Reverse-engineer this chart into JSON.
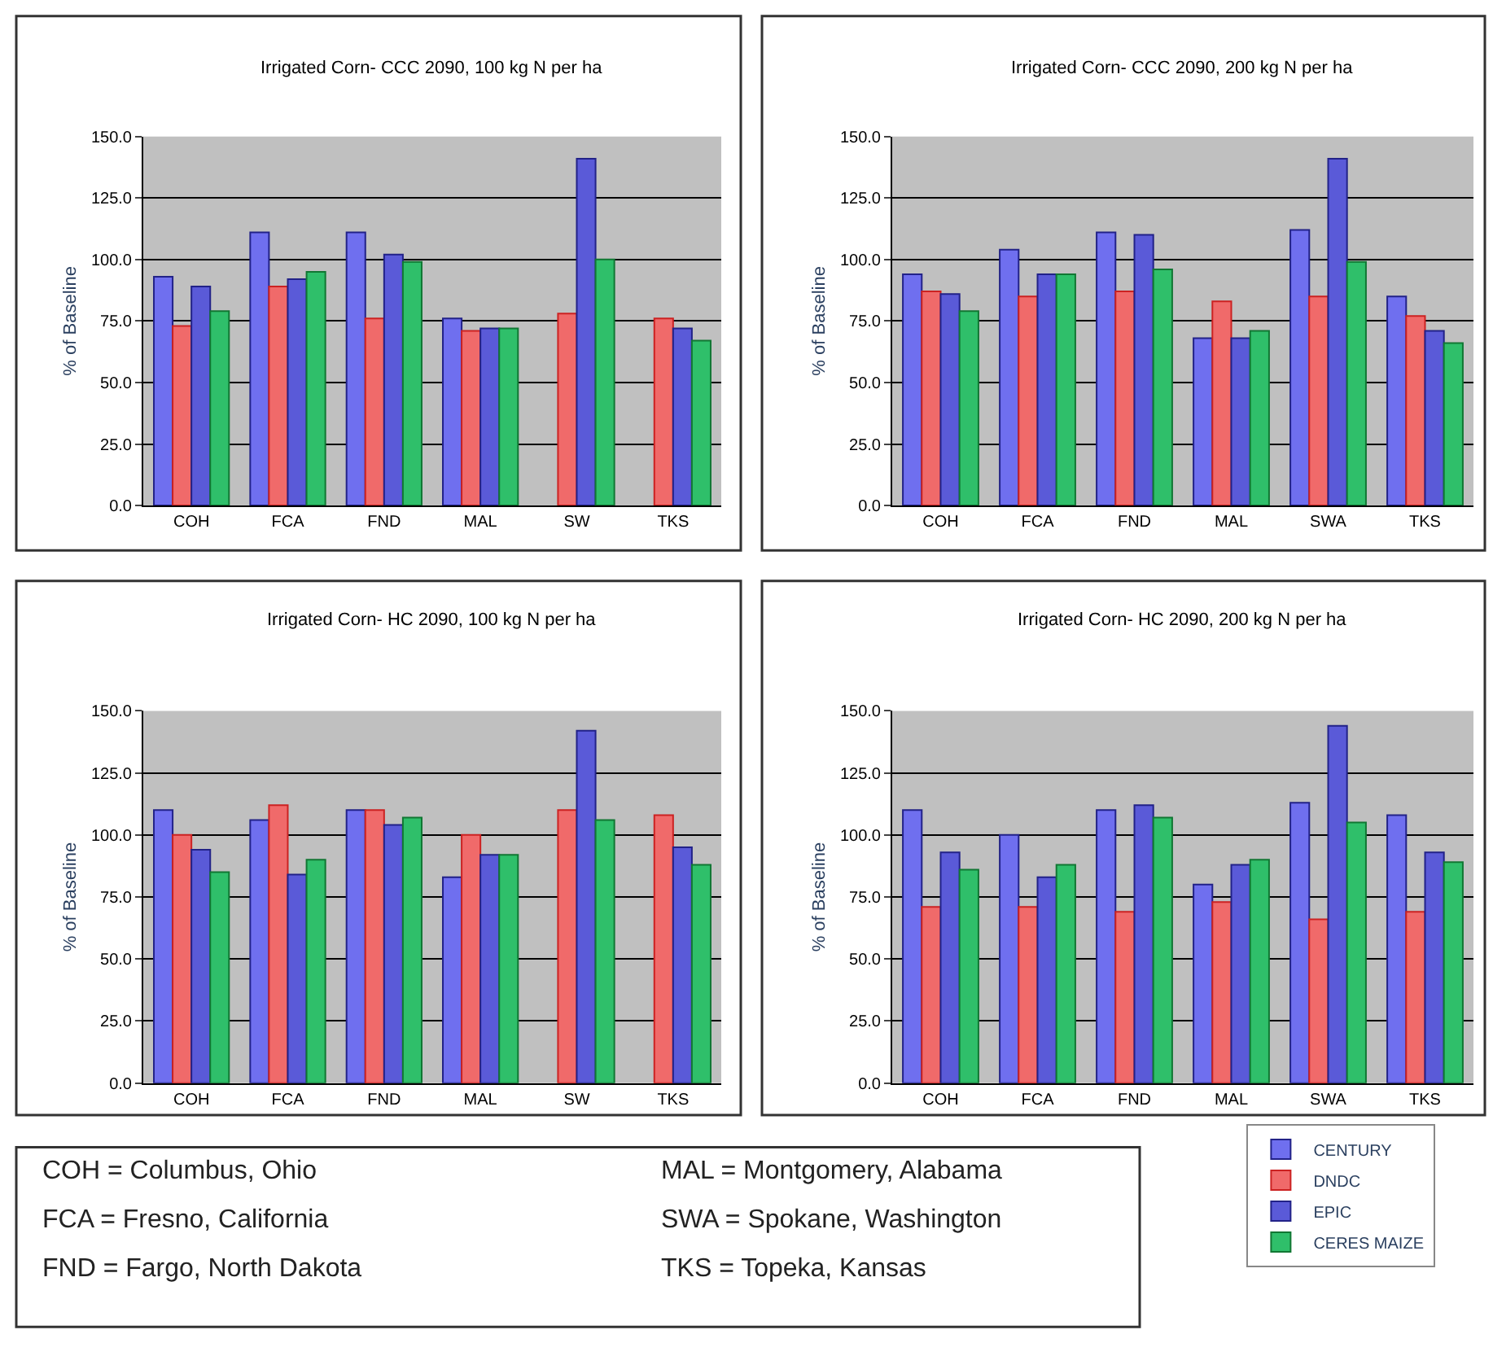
{
  "chart_data": [
    {
      "type": "bar",
      "title": "Irrigated Corn- CCC 2090, 100 kg N per ha",
      "ylabel": "% of Baseline",
      "categories": [
        "COH",
        "FCA",
        "FND",
        "MAL",
        "SW",
        "TKS"
      ],
      "ylim": [
        0,
        150
      ],
      "yticks": [
        {
          "value": 0,
          "label": "0.0"
        },
        {
          "value": 25,
          "label": "25.0"
        },
        {
          "value": 50,
          "label": "50.0"
        },
        {
          "value": 75,
          "label": "75.0"
        },
        {
          "value": 100,
          "label": "100.0"
        },
        {
          "value": 125,
          "label": "125.0"
        },
        {
          "value": 150,
          "label": "150.0"
        }
      ],
      "grid": "y",
      "series": [
        {
          "color": "#6f6fef",
          "values": [
            93,
            111,
            111,
            76,
            null,
            null
          ]
        },
        {
          "color": "#f06a6a",
          "values": [
            73,
            89,
            76,
            71,
            78,
            76
          ]
        },
        {
          "color": "#5a5ad8",
          "values": [
            89,
            92,
            102,
            72,
            141,
            72
          ]
        },
        {
          "color": "#2fbf6a",
          "values": [
            79,
            95,
            99,
            72,
            100,
            67
          ]
        }
      ]
    },
    {
      "type": "bar",
      "title": "Irrigated Corn- CCC 2090, 200 kg N per ha",
      "ylabel": "% of Baseline",
      "categories": [
        "COH",
        "FCA",
        "FND",
        "MAL",
        "SWA",
        "TKS"
      ],
      "ylim": [
        0,
        150
      ],
      "yticks": [
        {
          "value": 0,
          "label": "0.0"
        },
        {
          "value": 25,
          "label": "25.0"
        },
        {
          "value": 50,
          "label": "50.0"
        },
        {
          "value": 75,
          "label": "75.0"
        },
        {
          "value": 100,
          "label": "100.0"
        },
        {
          "value": 125,
          "label": "125.0"
        },
        {
          "value": 150,
          "label": "150.0"
        }
      ],
      "grid": "y",
      "series": [
        {
          "color": "#6f6fef",
          "values": [
            94,
            104,
            111,
            68,
            112,
            85
          ]
        },
        {
          "color": "#f06a6a",
          "values": [
            87,
            85,
            87,
            83,
            85,
            77
          ]
        },
        {
          "color": "#5a5ad8",
          "values": [
            86,
            94,
            110,
            68,
            141,
            71
          ]
        },
        {
          "color": "#2fbf6a",
          "values": [
            79,
            94,
            96,
            71,
            99,
            66
          ]
        }
      ]
    },
    {
      "type": "bar",
      "title": "Irrigated Corn- HC 2090, 100 kg N per ha",
      "ylabel": "% of Baseline",
      "categories": [
        "COH",
        "FCA",
        "FND",
        "MAL",
        "SW",
        "TKS"
      ],
      "ylim": [
        0,
        150
      ],
      "yticks": [
        {
          "value": 0,
          "label": "0.0"
        },
        {
          "value": 25,
          "label": "25.0"
        },
        {
          "value": 50,
          "label": "50.0"
        },
        {
          "value": 75,
          "label": "75.0"
        },
        {
          "value": 100,
          "label": "100.0"
        },
        {
          "value": 125,
          "label": "125.0"
        },
        {
          "value": 150,
          "label": "150.0"
        }
      ],
      "grid": "y",
      "series": [
        {
          "color": "#6f6fef",
          "values": [
            110,
            106,
            110,
            83,
            null,
            null
          ]
        },
        {
          "color": "#f06a6a",
          "values": [
            100,
            112,
            110,
            100,
            110,
            108
          ]
        },
        {
          "color": "#5a5ad8",
          "values": [
            94,
            84,
            104,
            92,
            142,
            95
          ]
        },
        {
          "color": "#2fbf6a",
          "values": [
            85,
            90,
            107,
            92,
            106,
            88
          ]
        }
      ]
    },
    {
      "type": "bar",
      "title": "Irrigated Corn- HC 2090, 200 kg N per ha",
      "ylabel": "% of Baseline",
      "categories": [
        "COH",
        "FCA",
        "FND",
        "MAL",
        "SWA",
        "TKS"
      ],
      "ylim": [
        0,
        150
      ],
      "yticks": [
        {
          "value": 0,
          "label": "0.0"
        },
        {
          "value": 25,
          "label": "25.0"
        },
        {
          "value": 50,
          "label": "50.0"
        },
        {
          "value": 75,
          "label": "75.0"
        },
        {
          "value": 100,
          "label": "100.0"
        },
        {
          "value": 125,
          "label": "125.0"
        },
        {
          "value": 150,
          "label": "150.0"
        }
      ],
      "grid": "y",
      "legend": "bottom right",
      "series": [
        {
          "name": "CENTURY",
          "color": "#6f6fef",
          "values": [
            110,
            100,
            110,
            80,
            113,
            108
          ]
        },
        {
          "name": "DNDC",
          "color": "#f06a6a",
          "values": [
            71,
            71,
            69,
            73,
            66,
            69
          ]
        },
        {
          "name": "EPIC",
          "color": "#5a5ad8",
          "values": [
            93,
            83,
            112,
            88,
            144,
            93
          ]
        },
        {
          "name": "CERES MAIZE",
          "color": "#2fbf6a",
          "values": [
            86,
            88,
            107,
            90,
            105,
            89
          ]
        }
      ]
    },
    {
      "type": "other",
      "annotations": [
        "COH = Columbus, Ohio",
        "FCA = Fresno, California",
        "FND = Fargo, North Dakota",
        "MAL = Montgomery, Alabama",
        "SWA = Spokane, Washington",
        "TKS = Topeka, Kansas"
      ]
    }
  ]
}
